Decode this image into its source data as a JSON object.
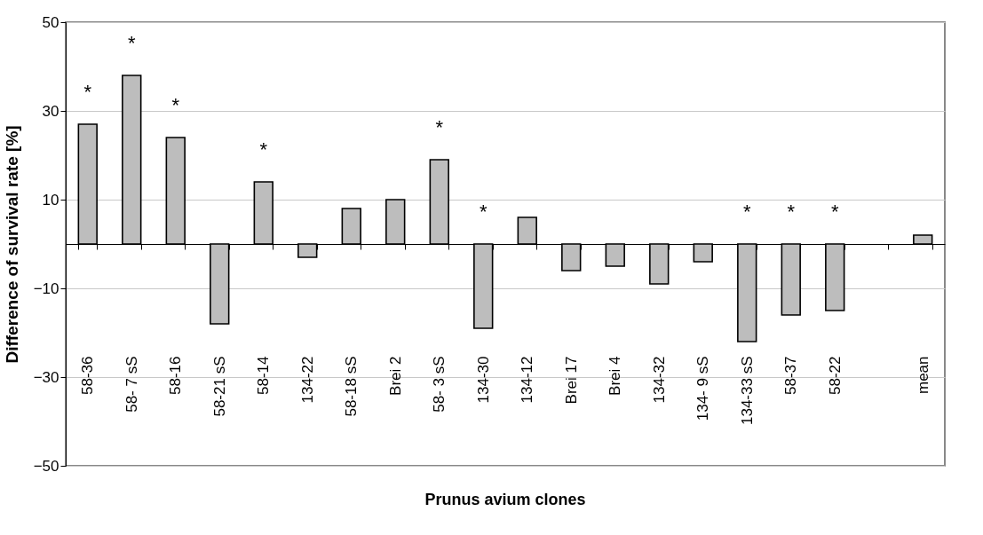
{
  "chart_data": {
    "type": "bar",
    "xlabel": "Prunus avium clones",
    "ylabel": "Difference of survival rate [%]",
    "categories": [
      "58-36",
      "58- 7 sS",
      "58-16",
      "58-21 sS",
      "58-14",
      "134-22",
      "58-18 sS",
      "Brei 2",
      "58- 3 sS",
      "134-30",
      "134-12",
      "Brei 17",
      "Brei 4",
      "134-32",
      "134- 9 sS",
      "134-33 sS",
      "58-37",
      "58-22",
      null,
      "mean"
    ],
    "values": [
      27,
      38,
      24,
      -18,
      14,
      -3,
      8,
      10,
      19,
      -19,
      6,
      -6,
      -5,
      -9,
      -4,
      -22,
      -16,
      -15,
      null,
      2
    ],
    "color": "#bdbdbd",
    "ylim": [
      -50,
      50
    ],
    "yticks": [
      -50,
      -30,
      -10,
      10,
      30,
      50
    ],
    "grid": "y",
    "annotations": [
      {
        "text": "*",
        "x": "58-36",
        "y": 27
      },
      {
        "text": "*",
        "x": "58- 7 sS",
        "y": 38
      },
      {
        "text": "*",
        "x": "58-16",
        "y": 24
      },
      {
        "text": "*",
        "x": "58-14",
        "y": 14
      },
      {
        "text": "*",
        "x": "58- 3 sS",
        "y": 19
      },
      {
        "text": "*",
        "x": "134-30",
        "y": 0
      },
      {
        "text": "*",
        "x": "134-33 sS",
        "y": 0
      },
      {
        "text": "*",
        "x": "58-37",
        "y": 0
      },
      {
        "text": "*",
        "x": "58-22",
        "y": 0
      }
    ]
  }
}
